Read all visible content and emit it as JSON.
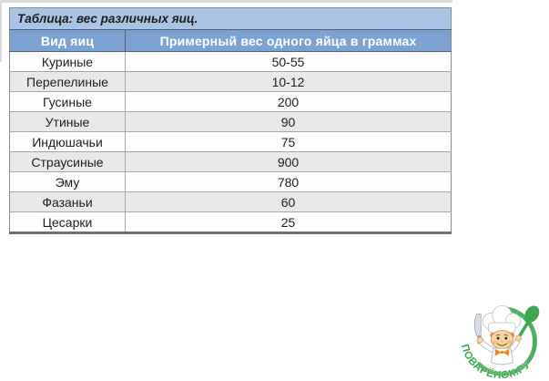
{
  "table": {
    "title": "Таблица: вес различных яиц.",
    "columns": [
      "Вид яиц",
      "Примерный вес одного яйца в граммах"
    ],
    "rows": [
      {
        "type": "Куриные",
        "weight": "50-55"
      },
      {
        "type": "Перепелиные",
        "weight": "10-12"
      },
      {
        "type": "Гусиные",
        "weight": "200"
      },
      {
        "type": "Утиные",
        "weight": "90"
      },
      {
        "type": "Индюшачьи",
        "weight": "75"
      },
      {
        "type": "Страусиные",
        "weight": "900"
      },
      {
        "type": "Эму",
        "weight": "780"
      },
      {
        "type": "Фазаньи",
        "weight": "60"
      },
      {
        "type": "Цесарки",
        "weight": "25"
      }
    ],
    "colors": {
      "title_bg": "#a9c4e4",
      "header_bg": "#7ba2d1",
      "header_text": "#ffffff",
      "alt_row_bg": "#e9e9e9",
      "row_border": "#a6a6a6"
    }
  },
  "logo": {
    "text": "ПОВАРЁНОК.РУ",
    "green": "#3fa653",
    "ring_green": "#4cb05e",
    "orange": "#f08a1f"
  },
  "chart_data": {
    "type": "table",
    "title": "Таблица: вес различных яиц.",
    "columns": [
      "Вид яиц",
      "Примерный вес одного яйца в граммах"
    ],
    "rows": [
      [
        "Куриные",
        "50-55"
      ],
      [
        "Перепелиные",
        "10-12"
      ],
      [
        "Гусиные",
        "200"
      ],
      [
        "Утиные",
        "90"
      ],
      [
        "Индюшачьи",
        "75"
      ],
      [
        "Страусиные",
        "900"
      ],
      [
        "Эму",
        "780"
      ],
      [
        "Фазаньи",
        "60"
      ],
      [
        "Цесарки",
        "25"
      ]
    ]
  }
}
